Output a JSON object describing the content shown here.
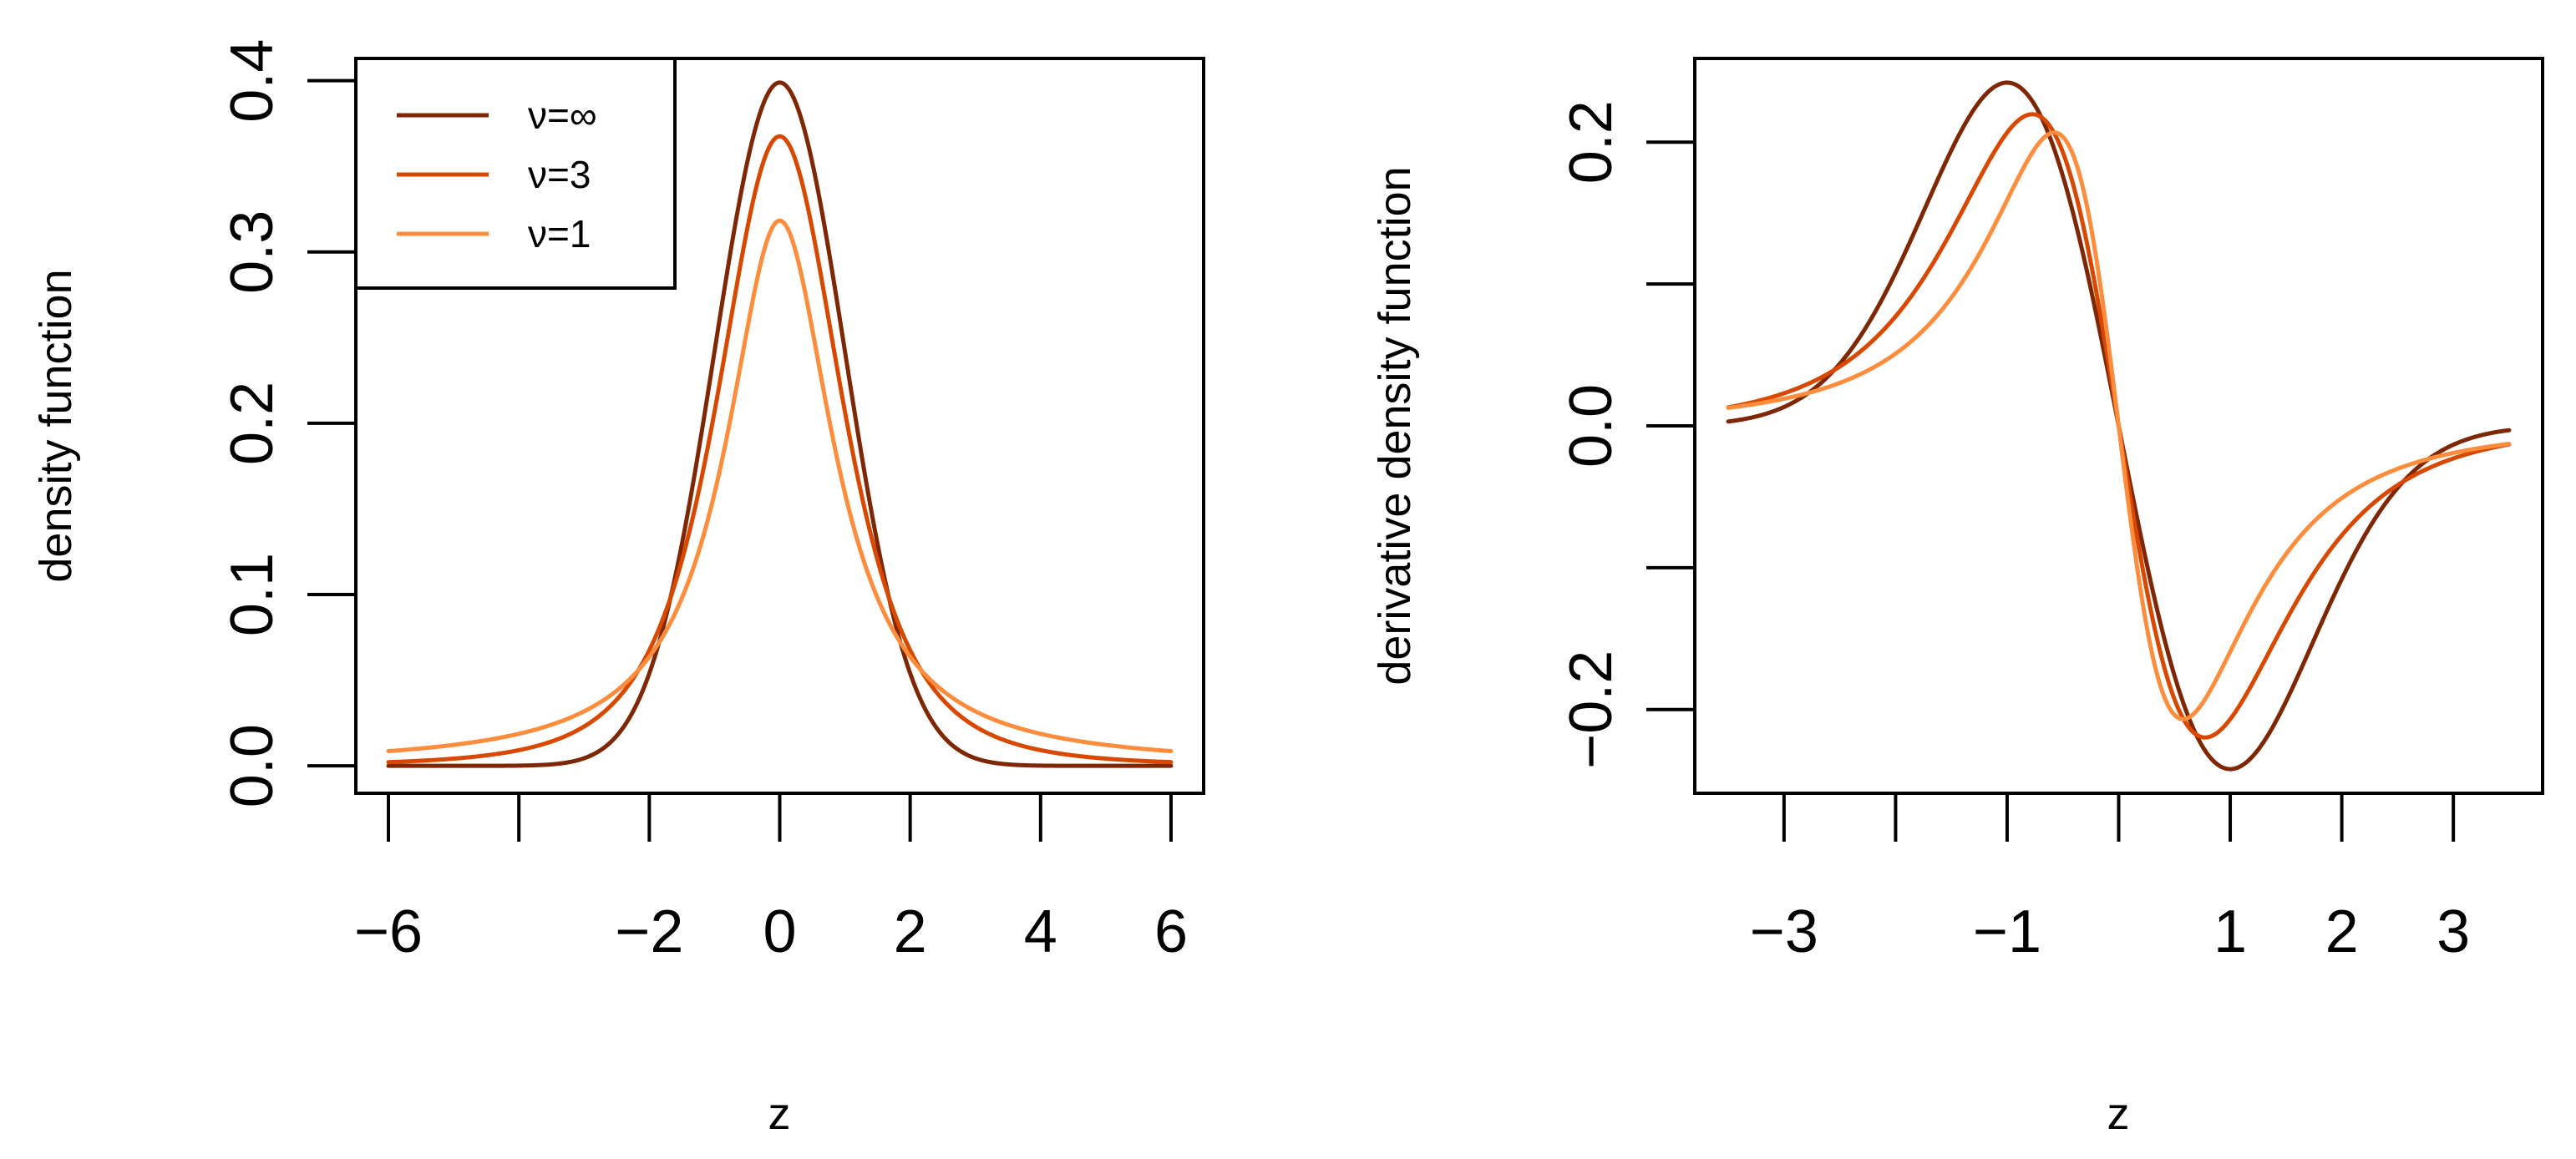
{
  "chart_data": [
    {
      "type": "line",
      "id": "density",
      "xlabel": "z",
      "ylabel": "density function",
      "xlim": [
        -6.5,
        6.5
      ],
      "ylim": [
        -0.016,
        0.413
      ],
      "xticks": [
        -6,
        -4,
        -2,
        0,
        2,
        4,
        6
      ],
      "xtick_labels": [
        "−6",
        "",
        "−2",
        "0",
        "2",
        "4",
        "6"
      ],
      "yticks": [
        0.0,
        0.1,
        0.2,
        0.3,
        0.4
      ],
      "ytick_labels": [
        "0.0",
        "0.1",
        "0.2",
        "0.3",
        "0.4"
      ],
      "x_range": [
        -6,
        6
      ],
      "function": "t-density",
      "legend": {
        "position": "top-left"
      },
      "series": [
        {
          "name": "ν=∞",
          "nu": "inf",
          "color": "#7f2704"
        },
        {
          "name": "ν=3",
          "nu": 3,
          "color": "#d94801"
        },
        {
          "name": "ν=1",
          "nu": 1,
          "color": "#fd8d3c"
        }
      ],
      "peak_values": {
        "nu_inf": 0.399,
        "nu_3": 0.368,
        "nu_1": 0.318
      }
    },
    {
      "type": "line",
      "id": "derivative",
      "xlabel": "z",
      "ylabel": "derivative density function",
      "xlim": [
        -3.8,
        3.8
      ],
      "ylim": [
        -0.259,
        0.259
      ],
      "xticks": [
        -3,
        -2,
        -1,
        0,
        1,
        2,
        3
      ],
      "xtick_labels": [
        "−3",
        "",
        "−1",
        "",
        "1",
        "2",
        "3"
      ],
      "yticks": [
        -0.2,
        -0.1,
        0.0,
        0.1,
        0.2
      ],
      "ytick_labels": [
        "−0.2",
        "",
        "0.0",
        "",
        "0.2"
      ],
      "x_range": [
        -3.5,
        3.5
      ],
      "function": "t-density-derivative",
      "series": [
        {
          "name": "ν=∞",
          "nu": "inf",
          "color": "#7f2704"
        },
        {
          "name": "ν=3",
          "nu": 3,
          "color": "#d94801"
        },
        {
          "name": "ν=1",
          "nu": 1,
          "color": "#fd8d3c"
        }
      ],
      "extrema": {
        "nu_inf": [
          -1.0,
          0.242
        ],
        "nu_3": [
          -0.866,
          0.219
        ],
        "nu_1": [
          -0.577,
          0.207
        ]
      }
    }
  ]
}
